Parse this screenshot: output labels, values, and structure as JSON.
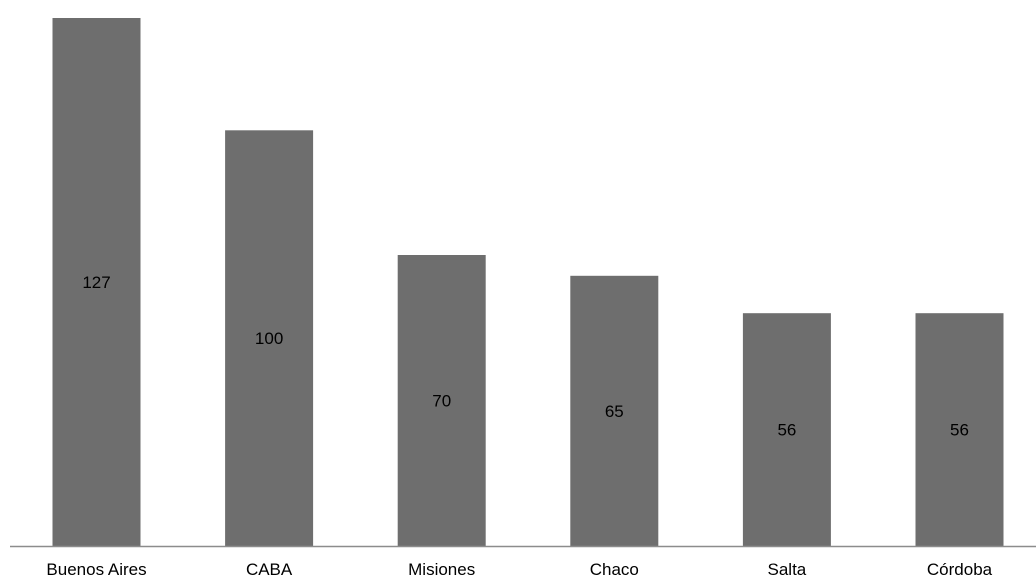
{
  "chart_data": {
    "type": "bar",
    "categories": [
      "Buenos Aires",
      "CABA",
      "Misiones",
      "Chaco",
      "Salta",
      "Córdoba"
    ],
    "values": [
      127,
      100,
      70,
      65,
      56,
      56
    ],
    "title": "",
    "xlabel": "",
    "ylabel": "",
    "ylim": [
      0,
      127
    ],
    "grid": false,
    "legend": "none",
    "bar_color": "#6e6e6e",
    "axis_color": "#8c8c8c",
    "label_color": "#000000"
  }
}
